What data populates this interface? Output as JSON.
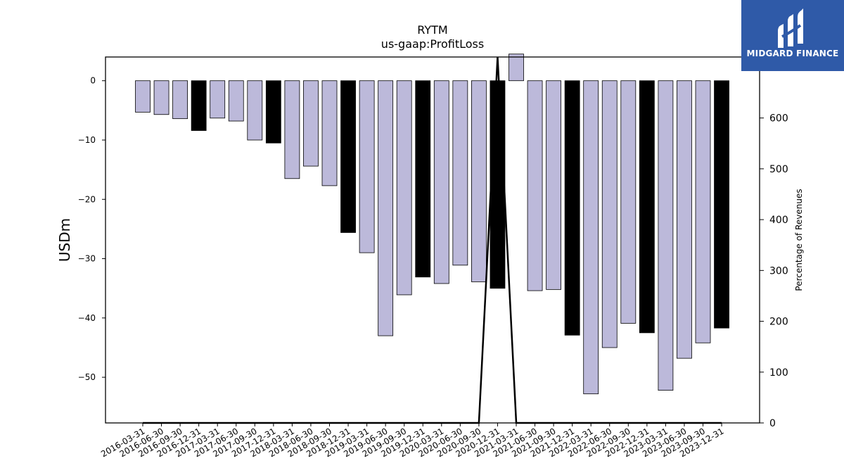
{
  "logo": {
    "text": "MIDGARD FINANCE",
    "icon": "midgard-m-logo-icon",
    "color": "#2f5aa8"
  },
  "chart_data": {
    "type": "bar",
    "title": "RYTM",
    "subtitle": "us-gaap:ProfitLoss",
    "ylabel": "USDm",
    "y2label": "Percentage of Revenues",
    "ylim": [
      -57.7,
      4.0
    ],
    "y2lim": [
      0,
      720
    ],
    "yticks": [
      0,
      -10,
      -20,
      -30,
      -40,
      -50
    ],
    "y2ticks": [
      0,
      100,
      200,
      300,
      400,
      500,
      600
    ],
    "grid": false,
    "colors": {
      "quarter": "#bcb9da",
      "year_end": "#000000"
    },
    "categories": [
      "2016-03-31",
      "2016-06-30",
      "2016-09-30",
      "2016-12-31",
      "2017-03-31",
      "2017-06-30",
      "2017-09-30",
      "2017-12-31",
      "2018-03-31",
      "2018-06-30",
      "2018-09-30",
      "2018-12-31",
      "2019-03-31",
      "2019-06-30",
      "2019-09-30",
      "2019-12-31",
      "2020-03-31",
      "2020-06-30",
      "2020-09-30",
      "2020-12-31",
      "2021-03-31",
      "2021-06-30",
      "2021-09-30",
      "2021-12-31",
      "2022-03-31",
      "2022-06-30",
      "2022-09-30",
      "2022-12-31",
      "2023-03-31",
      "2023-06-30",
      "2023-09-30",
      "2023-12-31"
    ],
    "series": [
      {
        "values": [
          -5.3,
          -5.7,
          -6.4,
          -8.4,
          -6.3,
          -6.8,
          -10.0,
          -10.5,
          -16.5,
          -14.4,
          -17.7,
          -25.6,
          -29.0,
          -43.0,
          -36.1,
          -33.1,
          -34.2,
          -31.1,
          -33.9,
          -35.0,
          4.5,
          -35.4,
          -35.2,
          -42.9,
          -52.8,
          -45.0,
          -40.9,
          -42.5,
          -52.2,
          -46.8,
          -44.2,
          -41.7
        ],
        "year_end": [
          false,
          false,
          false,
          true,
          false,
          false,
          false,
          true,
          false,
          false,
          false,
          true,
          false,
          false,
          false,
          true,
          false,
          false,
          false,
          true,
          false,
          false,
          false,
          true,
          false,
          false,
          false,
          true,
          false,
          false,
          false,
          true
        ]
      },
      {
        "type": "line",
        "axis": "right",
        "values": [
          0,
          0,
          0,
          0,
          0,
          0,
          0,
          0,
          0,
          0,
          0,
          0,
          0,
          0,
          0,
          0,
          0,
          0,
          0,
          720,
          0,
          0,
          0,
          0,
          0,
          0,
          0,
          0,
          0,
          0,
          0,
          0
        ]
      }
    ]
  }
}
